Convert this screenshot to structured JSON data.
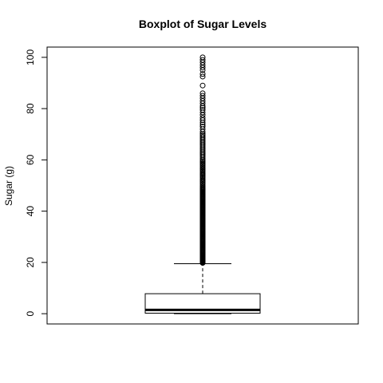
{
  "chart_data": {
    "type": "boxplot",
    "title": "Boxplot of Sugar Levels",
    "xlabel": "",
    "ylabel": "Sugar (g)",
    "ylim": [
      -4,
      104
    ],
    "yticks": [
      0,
      20,
      40,
      60,
      80,
      100
    ],
    "grid": false,
    "legend": "none",
    "box": {
      "min": 0,
      "q1": 0.2,
      "median": 1.5,
      "q3": 7.8,
      "whisker_low": 0,
      "whisker_high": 19.5
    },
    "outliers": [
      19.8,
      20.0,
      20.2,
      20.4,
      20.6,
      20.8,
      21.0,
      21.2,
      21.4,
      21.6,
      21.8,
      22.0,
      22.3,
      22.6,
      22.9,
      23.2,
      23.5,
      23.8,
      24.1,
      24.4,
      24.7,
      25.0,
      25.3,
      25.6,
      25.9,
      26.2,
      26.5,
      26.8,
      27.1,
      27.4,
      27.7,
      28.0,
      28.3,
      28.6,
      28.9,
      29.2,
      29.5,
      29.8,
      30.1,
      30.4,
      30.7,
      31.0,
      31.3,
      31.6,
      31.9,
      32.2,
      32.5,
      32.8,
      33.1,
      33.4,
      33.7,
      34.0,
      34.3,
      34.6,
      34.9,
      35.2,
      35.5,
      35.8,
      36.1,
      36.4,
      36.7,
      37.0,
      37.3,
      37.6,
      37.9,
      38.2,
      38.5,
      38.8,
      39.1,
      39.4,
      39.7,
      40.0,
      40.3,
      40.6,
      40.9,
      41.2,
      41.5,
      41.8,
      42.1,
      42.4,
      42.7,
      43.0,
      43.3,
      43.6,
      43.9,
      44.2,
      44.5,
      44.8,
      45.1,
      45.4,
      45.7,
      46.0,
      46.3,
      46.6,
      46.9,
      47.2,
      47.5,
      47.8,
      48.1,
      48.4,
      48.7,
      49.0,
      49.5,
      50.0,
      50.5,
      51.0,
      51.5,
      52.0,
      52.5,
      53.0,
      53.5,
      54.0,
      54.5,
      55.0,
      55.5,
      56.0,
      56.5,
      57.0,
      57.5,
      58.0,
      58.5,
      59.0,
      59.5,
      60.0,
      60.6,
      61.2,
      61.8,
      62.4,
      63.0,
      63.6,
      64.2,
      64.8,
      65.4,
      66.0,
      66.6,
      67.2,
      67.8,
      68.4,
      69.0,
      69.6,
      70.2,
      71.0,
      72.0,
      73.0,
      73.8,
      74.6,
      75.5,
      76.4,
      77.5,
      78.5,
      79.5,
      80.3,
      81.0,
      82.0,
      83.0,
      84.0,
      85.0,
      86.0,
      89.0,
      92.5,
      93.5,
      95.0,
      96.0,
      97.0,
      98.0,
      99.0,
      100.0
    ]
  }
}
